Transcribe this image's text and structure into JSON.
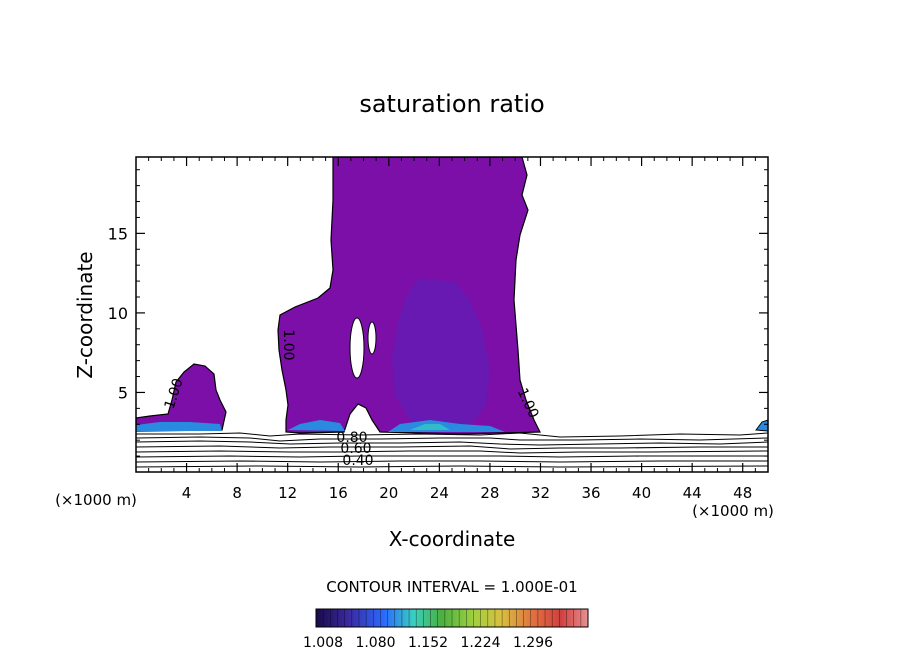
{
  "chart_data": {
    "type": "contour",
    "title": "saturation ratio",
    "xlabel": "X-coordinate",
    "ylabel": "Z-coordinate",
    "x_unit_left": "(×1000 m)",
    "x_unit_right": "(×1000 m)",
    "xlim": [
      0,
      50
    ],
    "ylim": [
      0,
      19.8
    ],
    "x_ticks": [
      4,
      8,
      12,
      16,
      20,
      24,
      28,
      32,
      36,
      40,
      44,
      48
    ],
    "y_ticks": [
      5,
      10,
      15
    ],
    "contour_interval_text": "CONTOUR INTERVAL = 1.000E-01",
    "contour_labels": [
      {
        "text": "1.00",
        "x": 3.3,
        "z": 5.3
      },
      {
        "text": "1.00",
        "x": 11.6,
        "z": 8.3
      },
      {
        "text": "1.00",
        "x": 30.4,
        "z": 4.2
      },
      {
        "text": "0.80",
        "x": 17.2,
        "z": 2.3
      },
      {
        "text": "0.60",
        "x": 17.2,
        "z": 1.6
      },
      {
        "text": "0.40",
        "x": 17.2,
        "z": 0.8
      }
    ],
    "colorbar": {
      "tick_labels": [
        "1.008",
        "1.080",
        "1.152",
        "1.224",
        "1.296"
      ],
      "colors": [
        "#1a0a4a",
        "#3a2aa0",
        "#2a8aff",
        "#3ad0c0",
        "#4ab040",
        "#a0d040",
        "#e0c040",
        "#e07040",
        "#d04040",
        "#e08080"
      ]
    },
    "colors": {
      "supersaturated_fill": "#7b0fa8",
      "core_fill": "#5a22b8",
      "base_band": "#2a8ae0"
    },
    "regions": [
      {
        "name": "left-cloud",
        "x": [
          0,
          7
        ],
        "z": [
          2.6,
          6.8
        ]
      },
      {
        "name": "main-cloud",
        "x": [
          11.8,
          32
        ],
        "z": [
          2.6,
          19.8
        ]
      },
      {
        "name": "right-edge-cloud",
        "x": [
          49.2,
          50
        ],
        "z": [
          2.8,
          3.2
        ]
      }
    ]
  }
}
